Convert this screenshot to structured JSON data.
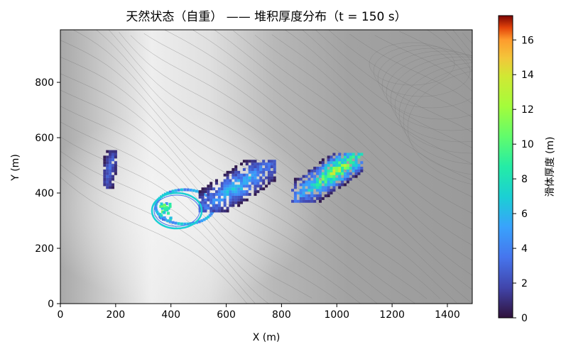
{
  "chart_data": {
    "type": "heatmap",
    "title": "天然状态（自重） —— 堆积厚度分布（t = 150 s）",
    "xlabel": "X (m)",
    "ylabel": "Y (m)",
    "xlim": [
      0,
      1490
    ],
    "ylim": [
      0,
      990
    ],
    "x_ticks": [
      0,
      200,
      400,
      600,
      800,
      1000,
      1200,
      1400
    ],
    "y_ticks": [
      0,
      200,
      400,
      600,
      800
    ],
    "colorbar": {
      "label": "滑体厚度 (m)",
      "range": [
        0,
        17.4
      ],
      "ticks": [
        0,
        2,
        4,
        6,
        8,
        10,
        12,
        14,
        16
      ],
      "colormap": "turbo"
    },
    "background": "grayscale hillshade terrain with thin gray elevation contour lines",
    "deposits": [
      {
        "name": "west-strip",
        "x_range": [
          155,
          195
        ],
        "y_range": [
          415,
          550
        ],
        "max_thickness": 4
      },
      {
        "name": "ring-deposit",
        "center": [
          445,
          345
        ],
        "x_range": [
          325,
          540
        ],
        "y_range": [
          275,
          410
        ],
        "max_thickness": 11
      },
      {
        "name": "central-band",
        "x_range": [
          500,
          770
        ],
        "y_range": [
          330,
          510
        ],
        "max_thickness": 8
      },
      {
        "name": "east-lobe",
        "x_range": [
          835,
          1085
        ],
        "y_range": [
          365,
          540
        ],
        "max_thickness": 15
      }
    ]
  }
}
